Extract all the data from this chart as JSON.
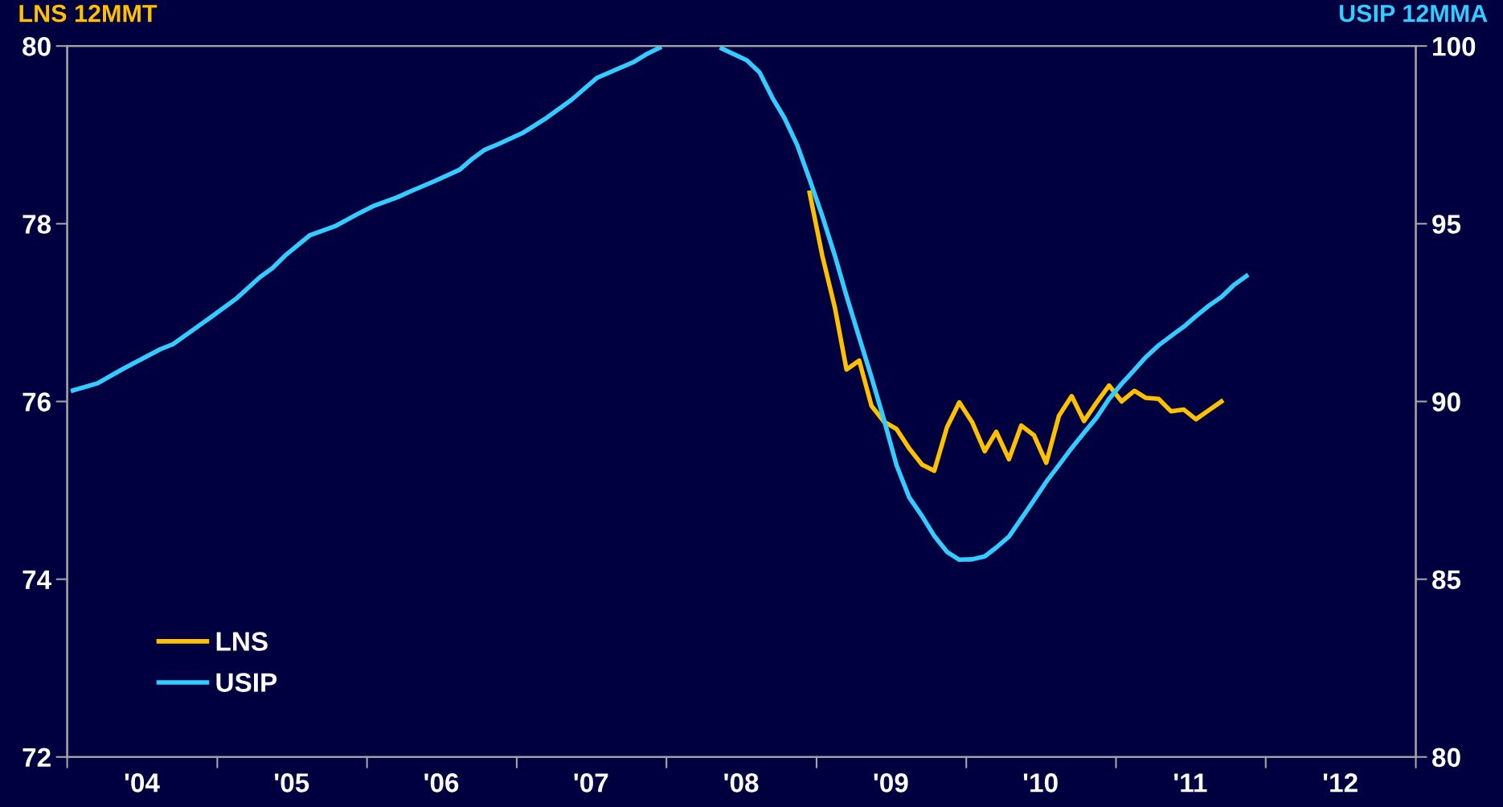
{
  "chart_data": {
    "type": "line",
    "ylabel": "LNS 12MMT",
    "y2label": "USIP 12MMA",
    "xlim": [
      "2004-01-01",
      "2013-01-01"
    ],
    "xticks": [
      {
        "value": "2004-01-01",
        "label": null
      },
      {
        "value": "2004-07-01",
        "label": "'04"
      },
      {
        "value": "2005-01-01",
        "label": null
      },
      {
        "value": "2005-07-01",
        "label": "'05"
      },
      {
        "value": "2006-01-01",
        "label": null
      },
      {
        "value": "2006-07-01",
        "label": "'06"
      },
      {
        "value": "2007-01-01",
        "label": null
      },
      {
        "value": "2007-07-01",
        "label": "'07"
      },
      {
        "value": "2008-01-01",
        "label": null
      },
      {
        "value": "2008-07-01",
        "label": "'08"
      },
      {
        "value": "2009-01-01",
        "label": null
      },
      {
        "value": "2009-07-01",
        "label": "'09"
      },
      {
        "value": "2010-01-01",
        "label": null
      },
      {
        "value": "2010-07-01",
        "label": "'10"
      },
      {
        "value": "2011-01-01",
        "label": null
      },
      {
        "value": "2011-07-01",
        "label": "'11"
      },
      {
        "value": "2012-01-01",
        "label": null
      },
      {
        "value": "2012-07-01",
        "label": "'12"
      },
      {
        "value": "2013-01-01",
        "label": null
      }
    ],
    "ylim": [
      72,
      80
    ],
    "yticks": [
      72,
      74,
      76,
      78,
      80
    ],
    "y2lim": [
      80,
      100
    ],
    "y2ticks": [
      80,
      85,
      90,
      95,
      100
    ],
    "grid": false,
    "legend": "bottom left",
    "marker": "none",
    "line_style": "solid",
    "series": [
      {
        "name": "LNS",
        "color": "#ffc000",
        "x": [
          "2008-12-15",
          "2009-01-15",
          "2009-02-15",
          "2009-03-15",
          "2009-04-15",
          "2009-05-15",
          "2009-06-15",
          "2009-07-15",
          "2009-08-15",
          "2009-09-15",
          "2009-10-15",
          "2009-11-15",
          "2009-12-15",
          "2010-01-15",
          "2010-02-15",
          "2010-03-15",
          "2010-04-15",
          "2010-05-15",
          "2010-06-15",
          "2010-07-15",
          "2010-08-15",
          "2010-09-15",
          "2010-10-15",
          "2010-11-15",
          "2010-12-15",
          "2011-01-15",
          "2011-02-15",
          "2011-03-15",
          "2011-04-15",
          "2011-05-15",
          "2011-06-15",
          "2011-07-15",
          "2011-08-15",
          "2011-09-15"
        ],
        "values": [
          78.35,
          77.64,
          77.05,
          76.36,
          76.46,
          75.95,
          75.77,
          75.69,
          75.47,
          75.29,
          75.22,
          75.71,
          75.99,
          75.77,
          75.44,
          75.66,
          75.35,
          75.73,
          75.62,
          75.31,
          75.84,
          76.06,
          75.78,
          75.99,
          76.18,
          76.0,
          76.12,
          76.04,
          76.03,
          75.89,
          75.91,
          75.8,
          75.9,
          76.0
        ]
      },
      {
        "name": "USIP",
        "color": "#33ccff",
        "axis": "y2",
        "x": [
          "2004-01-15",
          "2004-03-15",
          "2004-05-15",
          "2004-08-15",
          "2004-09-15",
          "2004-12-15",
          "2005-02-15",
          "2005-04-15",
          "2005-05-15",
          "2005-06-15",
          "2005-08-15",
          "2005-10-15",
          "2005-12-15",
          "2006-01-15",
          "2006-03-15",
          "2006-04-15",
          "2006-06-15",
          "2006-08-15",
          "2006-09-15",
          "2006-10-15",
          "2006-11-15",
          "2006-12-15",
          "2007-01-15",
          "2007-03-15",
          "2007-05-15",
          "2007-07-15",
          "2007-10-15",
          "2007-11-15",
          "2007-12-15",
          "2008-01-15",
          "2008-02-15",
          "2008-03-15",
          "2008-04-15",
          "2008-05-15",
          "2008-07-15",
          "2008-08-15",
          "2008-09-15",
          "2008-10-15",
          "2008-11-15",
          "2008-12-15",
          "2009-01-15",
          "2009-02-15",
          "2009-03-15",
          "2009-04-15",
          "2009-05-15",
          "2009-06-15",
          "2009-07-15",
          "2009-08-15",
          "2009-09-15",
          "2009-10-15",
          "2009-11-15",
          "2009-12-15",
          "2010-01-15",
          "2010-02-15",
          "2010-03-15",
          "2010-04-15",
          "2010-05-15",
          "2010-06-15",
          "2010-07-15",
          "2010-08-15",
          "2010-09-15",
          "2010-10-15",
          "2010-11-15",
          "2010-12-15",
          "2011-01-15",
          "2011-02-15",
          "2011-03-15",
          "2011-04-15",
          "2011-05-15",
          "2011-06-15",
          "2011-07-15",
          "2011-08-15",
          "2011-09-15",
          "2011-10-15",
          "2011-11-15"
        ],
        "values": [
          90.31,
          90.51,
          90.91,
          91.47,
          91.61,
          92.36,
          92.88,
          93.5,
          93.75,
          94.1,
          94.68,
          94.93,
          95.31,
          95.49,
          95.74,
          95.9,
          96.2,
          96.52,
          96.83,
          97.08,
          97.23,
          97.39,
          97.55,
          97.98,
          98.49,
          99.1,
          99.56,
          99.78,
          99.95,
          null,
          null,
          null,
          null,
          99.93,
          99.6,
          99.26,
          98.55,
          97.97,
          97.21,
          96.25,
          95.22,
          94.09,
          92.97,
          91.8,
          90.68,
          89.46,
          88.21,
          87.3,
          86.78,
          86.22,
          85.77,
          85.55,
          85.56,
          85.64,
          85.89,
          86.2,
          86.7,
          87.22,
          87.74,
          88.21,
          88.69,
          89.12,
          89.55,
          90.07,
          90.5,
          90.89,
          91.25,
          91.58,
          91.84,
          92.1,
          92.4,
          92.69,
          92.94,
          93.27,
          93.53
        ]
      }
    ]
  }
}
